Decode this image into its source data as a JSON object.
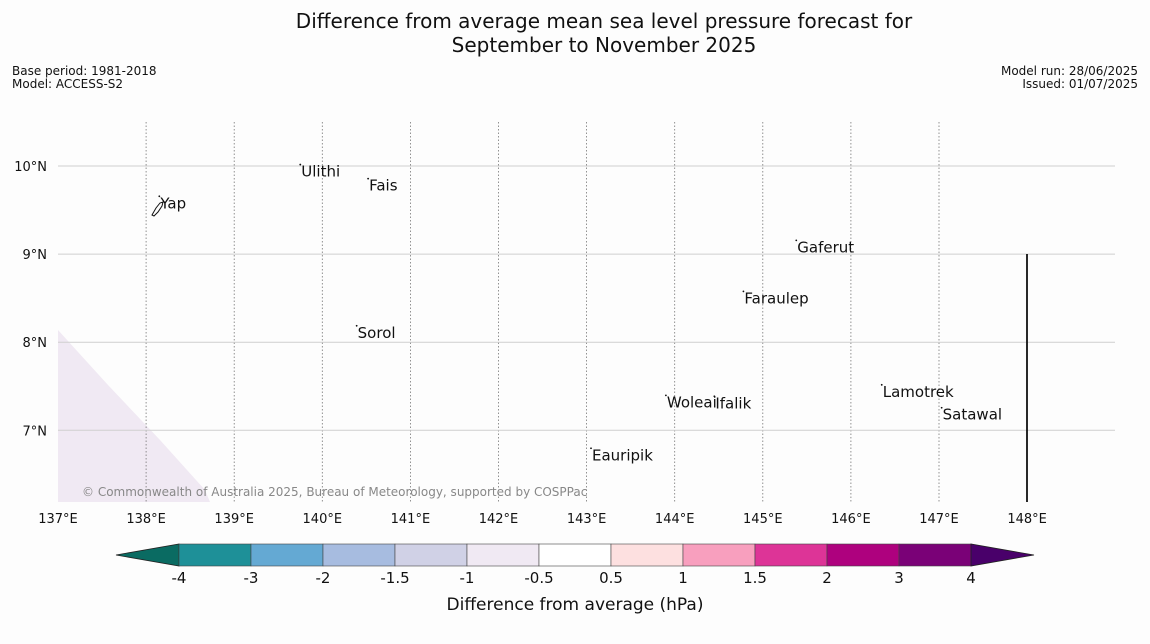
{
  "title_line1": "Difference from average mean sea level pressure forecast for",
  "title_line2": "September to November 2025",
  "meta": {
    "base_period": "Base period: 1981-2018",
    "model": "Model: ACCESS-S2",
    "model_run": "Model run: 28/06/2025",
    "issued": "Issued: 01/07/2025"
  },
  "copyright": "© Commonwealth of Australia 2025, Bureau of Meteorology, supported by COSPPac",
  "map": {
    "lon_range": [
      137,
      149
    ],
    "lat_range": [
      6.2,
      10.5
    ],
    "lon_ticks": [
      {
        "value": 137,
        "label": "137°E"
      },
      {
        "value": 138,
        "label": "138°E"
      },
      {
        "value": 139,
        "label": "139°E"
      },
      {
        "value": 140,
        "label": "140°E"
      },
      {
        "value": 141,
        "label": "141°E"
      },
      {
        "value": 142,
        "label": "142°E"
      },
      {
        "value": 143,
        "label": "143°E"
      },
      {
        "value": 144,
        "label": "144°E"
      },
      {
        "value": 145,
        "label": "145°E"
      },
      {
        "value": 146,
        "label": "146°E"
      },
      {
        "value": 147,
        "label": "147°E"
      },
      {
        "value": 148,
        "label": "148°E"
      }
    ],
    "lat_ticks": [
      {
        "value": 10,
        "label": "10°N"
      },
      {
        "value": 9,
        "label": "9°N"
      },
      {
        "value": 8,
        "label": "8°N"
      },
      {
        "value": 7,
        "label": "7°N"
      }
    ],
    "places": [
      {
        "name": "Ulithi",
        "lon": 139.75,
        "lat": 9.88
      },
      {
        "name": "Fais",
        "lon": 140.52,
        "lat": 9.72
      },
      {
        "name": "Yap",
        "lon": 138.15,
        "lat": 9.52
      },
      {
        "name": "Gaferut",
        "lon": 145.38,
        "lat": 9.02
      },
      {
        "name": "Faraulep",
        "lon": 144.78,
        "lat": 8.44
      },
      {
        "name": "Sorol",
        "lon": 140.39,
        "lat": 8.05
      },
      {
        "name": "Lamotrek",
        "lon": 146.35,
        "lat": 7.38
      },
      {
        "name": "Woleai",
        "lon": 143.9,
        "lat": 7.26
      },
      {
        "name": "Ifalik",
        "lon": 144.45,
        "lat": 7.25
      },
      {
        "name": "Satawal",
        "lon": 147.03,
        "lat": 7.12
      },
      {
        "name": "Eauripik",
        "lon": 143.05,
        "lat": 6.66
      }
    ]
  },
  "colorbar": {
    "title": "Difference from average (hPa)",
    "ticks": [
      "-4",
      "-3",
      "-2",
      "-1.5",
      "-1",
      "-0.5",
      "0.5",
      "1",
      "1.5",
      "2",
      "3",
      "4"
    ],
    "colors": [
      "#0a6b62",
      "#1e9098",
      "#64a9d3",
      "#a7bce0",
      "#d0d1e6",
      "#f0e9f3",
      "#ffffff",
      "#fde0e0",
      "#f89fbe",
      "#dd3497",
      "#ae017e",
      "#7a0177",
      "#49006a"
    ]
  }
}
